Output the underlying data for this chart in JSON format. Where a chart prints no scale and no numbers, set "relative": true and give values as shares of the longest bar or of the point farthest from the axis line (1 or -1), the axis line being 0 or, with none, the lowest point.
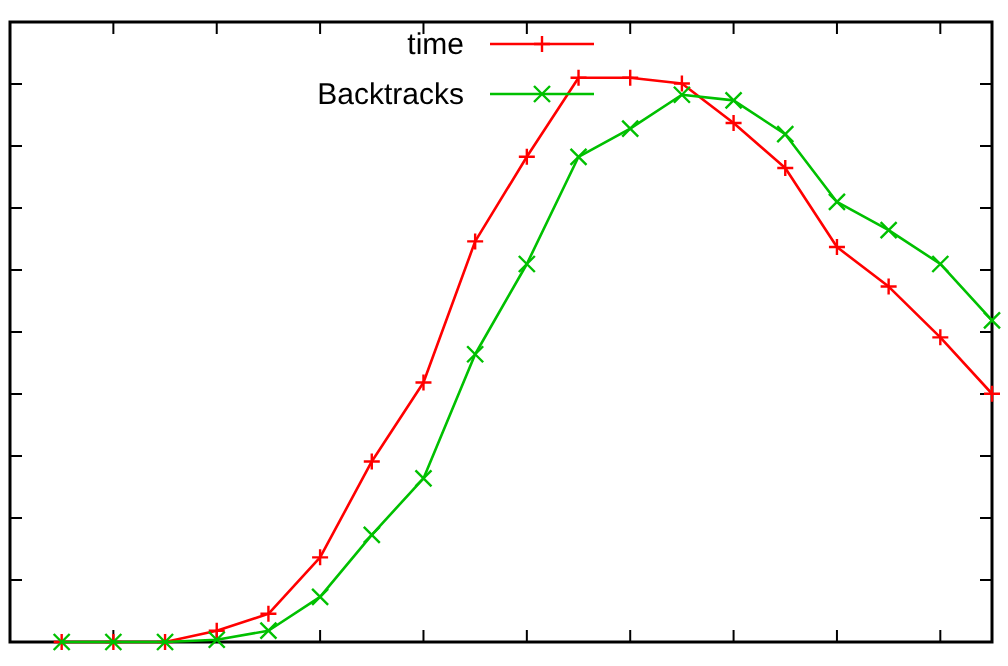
{
  "chart_data": {
    "type": "line",
    "relative": true,
    "categories": [
      null,
      null,
      null,
      null,
      null,
      null,
      null,
      null,
      null,
      null,
      null,
      null,
      null,
      null,
      null,
      null,
      null,
      null,
      null
    ],
    "legend": "top",
    "marker": "cross",
    "series": [
      {
        "name": "time",
        "color": "#ff0000",
        "values": [
          0,
          0,
          0,
          0.02,
          0.05,
          0.15,
          0.32,
          0.46,
          0.71,
          0.86,
          1,
          1,
          0.99,
          0.92,
          0.84,
          0.7,
          0.63,
          0.54,
          0.44
        ]
      },
      {
        "name": "Backtracks",
        "color": "#00c000",
        "values": [
          0,
          0,
          0,
          0.004,
          0.02,
          0.08,
          0.19,
          0.29,
          0.51,
          0.67,
          0.86,
          0.91,
          0.97,
          0.96,
          0.9,
          0.78,
          0.73,
          0.67,
          0.57
        ]
      }
    ]
  }
}
